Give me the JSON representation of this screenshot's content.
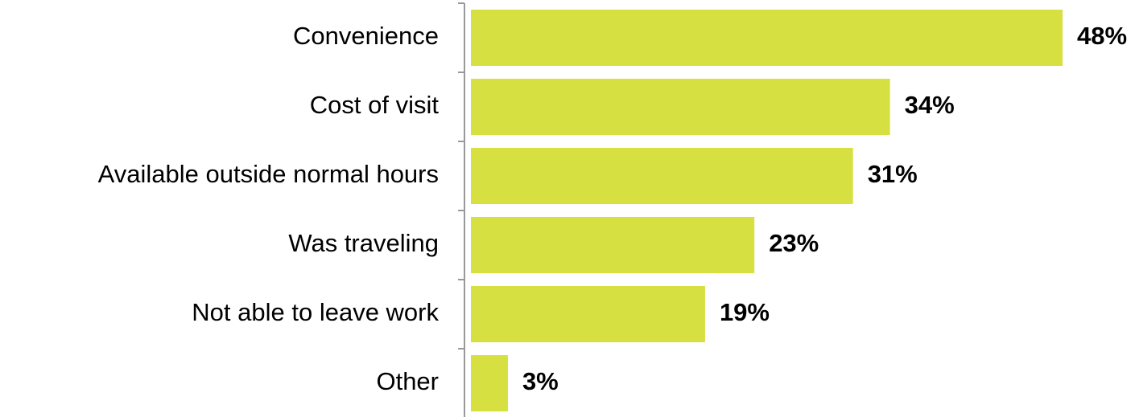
{
  "chart_data": {
    "type": "bar",
    "orientation": "horizontal",
    "categories": [
      "Convenience",
      "Cost of visit",
      "Available outside normal hours",
      "Was traveling",
      "Not able to leave work",
      "Other"
    ],
    "values": [
      48,
      34,
      31,
      23,
      19,
      3
    ],
    "value_labels": [
      "48%",
      "34%",
      "31%",
      "23%",
      "19%",
      "3%"
    ],
    "color": "#d7e041"
  }
}
